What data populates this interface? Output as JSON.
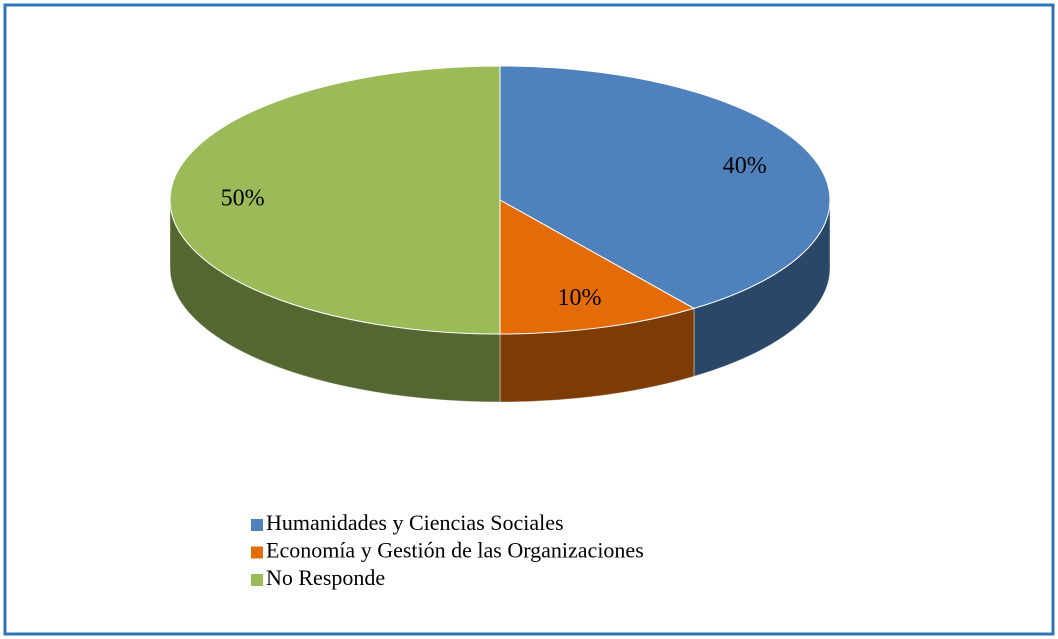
{
  "chart_data": {
    "type": "pie",
    "categories": [
      "Humanidades y Ciencias Sociales",
      "Economía y Gestión de las Organizaciones",
      "No Responde"
    ],
    "values": [
      40,
      10,
      50
    ],
    "value_labels": [
      "40%",
      "10%",
      "50%"
    ],
    "colors": [
      "#4f81bd",
      "#e36c09",
      "#9bbb59"
    ],
    "legend": "bottom"
  }
}
